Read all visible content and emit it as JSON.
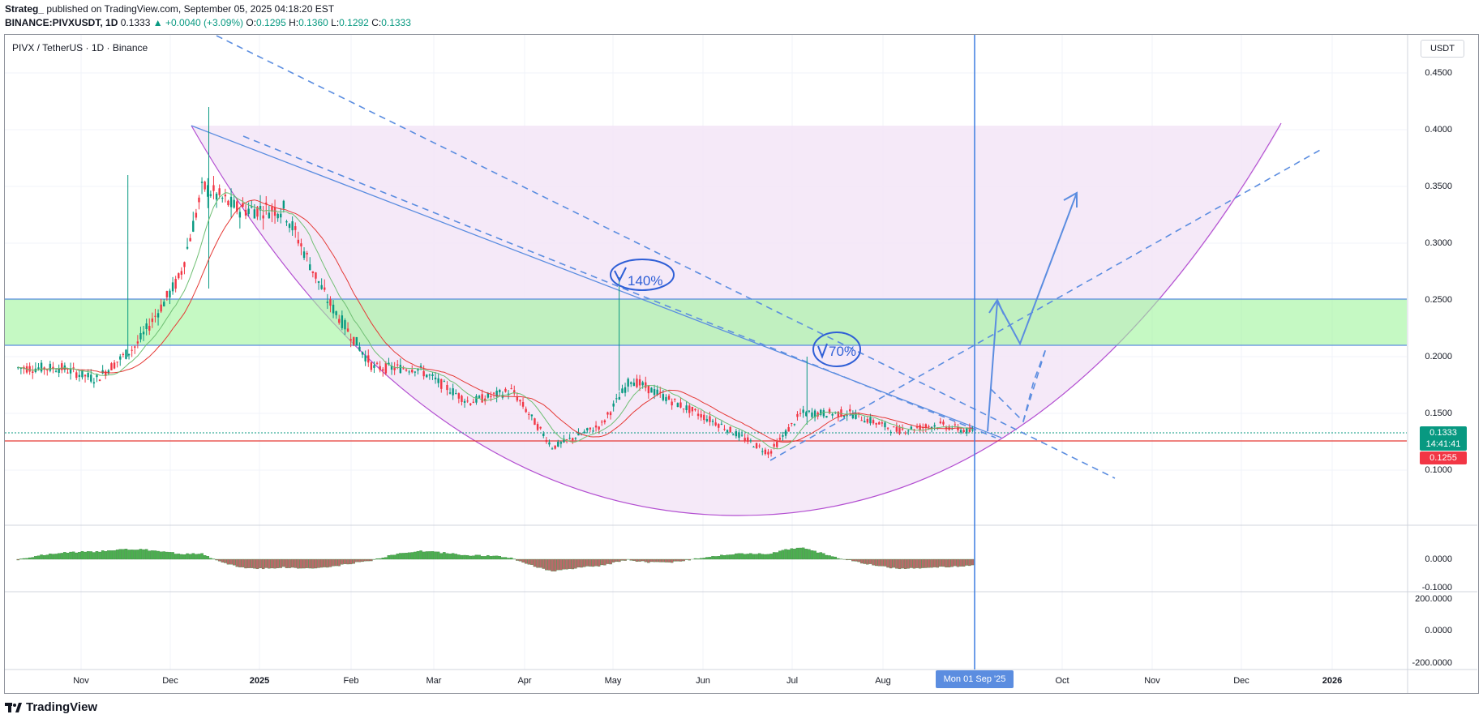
{
  "header": {
    "publisher": "Strateg_",
    "published_text": "published on TradingView.com, September 05, 2025 04:18:20 EST",
    "symbol": "BINANCE:PIVXUSDT, 1D",
    "last": "0.1333",
    "change": "▲ +0.0040 (+3.09%)",
    "o_label": "O:",
    "o": "0.1295",
    "h_label": "H:",
    "h": "0.1360",
    "l_label": "L:",
    "l": "0.1292",
    "c_label": "C:",
    "c": "0.1333"
  },
  "pane": {
    "title": "PIVX / TetherUS · 1D · Binance",
    "unit": "USDT"
  },
  "price_axis": [
    "0.4500",
    "0.4000",
    "0.3500",
    "0.3000",
    "0.2500",
    "0.2000",
    "0.1500",
    "0.1000"
  ],
  "oscillator_axis": [
    "0.0000",
    "-0.1000"
  ],
  "third_axis": [
    "200.0000",
    "0.0000",
    "-200.0000"
  ],
  "price_tags": {
    "last_price": "0.1333",
    "countdown": "14:41:41",
    "support_price": "0.1255"
  },
  "time_axis": [
    "Nov",
    "Dec",
    "2025",
    "Feb",
    "Mar",
    "Apr",
    "May",
    "Jun",
    "Jul",
    "Aug",
    "Oct",
    "Nov",
    "Dec",
    "2026"
  ],
  "crosshair_label": "Mon 01 Sep '25",
  "annotations": {
    "first": "140%",
    "second": "70%"
  },
  "branding": "TradingView",
  "colors": {
    "up": "#089981",
    "down": "#f23645",
    "zone": "#9ef59b",
    "bowl": "#f3e5f7",
    "trend": "#5b8de0",
    "support": "#e53935",
    "crosshair": "#3d7de0"
  },
  "chart_data": {
    "type": "candlestick",
    "symbol": "PIVXUSDT",
    "interval": "1D",
    "last_close": 0.1333,
    "support_level": 0.1255,
    "resistance_zone": [
      0.21,
      0.252
    ],
    "peaks_annotated": [
      "140%",
      "70%"
    ],
    "ylim": [
      0.08,
      0.48
    ],
    "close_path": [
      {
        "date": "2024-10-05",
        "close": 0.19
      },
      {
        "date": "2024-10-20",
        "close": 0.19
      },
      {
        "date": "2024-11-01",
        "close": 0.18
      },
      {
        "date": "2024-11-15",
        "close": 0.21
      },
      {
        "date": "2024-11-30",
        "close": 0.27
      },
      {
        "date": "2024-12-08",
        "close": 0.35
      },
      {
        "date": "2024-12-20",
        "close": 0.33
      },
      {
        "date": "2025-01-05",
        "close": 0.33
      },
      {
        "date": "2025-01-20",
        "close": 0.25
      },
      {
        "date": "2025-02-05",
        "close": 0.19
      },
      {
        "date": "2025-02-20",
        "close": 0.19
      },
      {
        "date": "2025-03-10",
        "close": 0.16
      },
      {
        "date": "2025-03-25",
        "close": 0.17
      },
      {
        "date": "2025-04-08",
        "close": 0.12
      },
      {
        "date": "2025-04-25",
        "close": 0.14
      },
      {
        "date": "2025-05-05",
        "close": 0.18
      },
      {
        "date": "2025-05-20",
        "close": 0.16
      },
      {
        "date": "2025-06-05",
        "close": 0.14
      },
      {
        "date": "2025-06-22",
        "close": 0.115
      },
      {
        "date": "2025-07-03",
        "close": 0.15
      },
      {
        "date": "2025-07-20",
        "close": 0.15
      },
      {
        "date": "2025-08-05",
        "close": 0.135
      },
      {
        "date": "2025-08-20",
        "close": 0.14
      },
      {
        "date": "2025-09-01",
        "close": 0.133
      }
    ]
  }
}
